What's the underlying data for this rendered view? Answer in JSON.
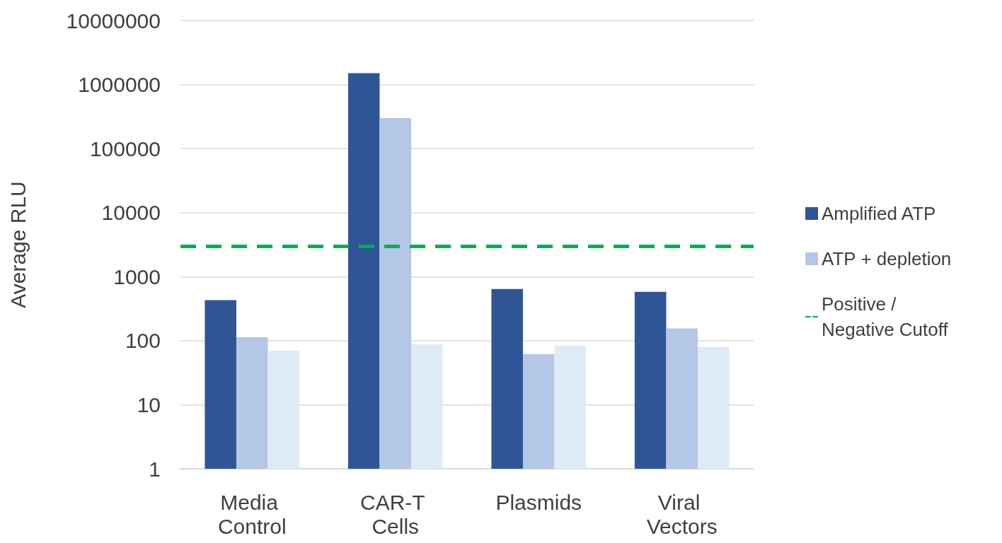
{
  "chart_data": {
    "type": "bar",
    "ylabel": "Average RLU",
    "categories": [
      "Media Control",
      "CAR-T Cells",
      "Plasmids",
      "Viral Vectors"
    ],
    "series": [
      {
        "name": "Amplified ATP",
        "color": "#2f5597",
        "values": [
          430,
          1500000,
          640,
          580
        ]
      },
      {
        "name": "ATP + depletion",
        "color": "#b4c7e7",
        "values": [
          113,
          300000,
          62,
          155
        ]
      },
      {
        "color": "#deebf7",
        "values": [
          70,
          88,
          84,
          80
        ]
      }
    ],
    "log": "y",
    "ylim": [
      1,
      10000000
    ],
    "yticks": [
      1,
      10,
      100,
      1000,
      10000,
      100000,
      1000000,
      10000000
    ],
    "grid": "y",
    "legend": "right",
    "ref_lines": [
      {
        "axis": "y",
        "value": 3000,
        "label": "Positive / Negative Cutoff",
        "color": "#00b050",
        "line_style": "dashed"
      }
    ]
  }
}
